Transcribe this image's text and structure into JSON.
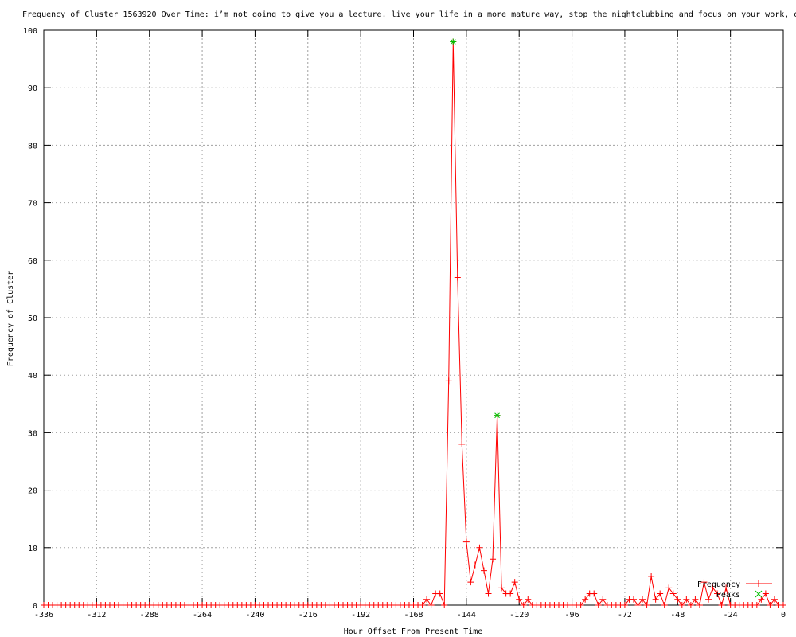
{
  "chart_data": {
    "type": "line",
    "title": "Frequency of Cluster 1563920 Over Time: i’m not going to give you a lecture. live your life in a more mature way, stop the nightclubbing and focus on your work, o",
    "xlabel": "Hour Offset From Present Time",
    "ylabel": "Frequency of Cluster",
    "xlim": [
      -336,
      0
    ],
    "ylim": [
      0,
      100
    ],
    "xticks": [
      -336,
      -312,
      -288,
      -264,
      -240,
      -216,
      -192,
      -168,
      -144,
      -120,
      -96,
      -72,
      -48,
      -24,
      0
    ],
    "yticks": [
      0,
      10,
      20,
      30,
      40,
      50,
      60,
      70,
      80,
      90,
      100
    ],
    "grid": true,
    "legend_position": "bottom-right",
    "series": [
      {
        "name": "Frequency",
        "color": "#ff0000",
        "marker": "plus",
        "x": [
          -336,
          -334,
          -332,
          -330,
          -328,
          -326,
          -324,
          -322,
          -320,
          -318,
          -316,
          -314,
          -312,
          -310,
          -308,
          -306,
          -304,
          -302,
          -300,
          -298,
          -296,
          -294,
          -292,
          -290,
          -288,
          -286,
          -284,
          -282,
          -280,
          -278,
          -276,
          -274,
          -272,
          -270,
          -268,
          -266,
          -264,
          -262,
          -260,
          -258,
          -256,
          -254,
          -252,
          -250,
          -248,
          -246,
          -244,
          -242,
          -240,
          -238,
          -236,
          -234,
          -232,
          -230,
          -228,
          -226,
          -224,
          -222,
          -220,
          -218,
          -216,
          -214,
          -212,
          -210,
          -208,
          -206,
          -204,
          -202,
          -200,
          -198,
          -196,
          -194,
          -192,
          -190,
          -188,
          -186,
          -184,
          -182,
          -180,
          -178,
          -176,
          -174,
          -172,
          -170,
          -168,
          -166,
          -164,
          -162,
          -160,
          -158,
          -156,
          -154,
          -152,
          -150,
          -148,
          -146,
          -144,
          -142,
          -140,
          -138,
          -136,
          -134,
          -132,
          -130,
          -128,
          -126,
          -124,
          -122,
          -120,
          -118,
          -116,
          -114,
          -112,
          -110,
          -108,
          -106,
          -104,
          -102,
          -100,
          -98,
          -96,
          -94,
          -92,
          -90,
          -88,
          -86,
          -84,
          -82,
          -80,
          -78,
          -76,
          -74,
          -72,
          -70,
          -68,
          -66,
          -64,
          -62,
          -60,
          -58,
          -56,
          -54,
          -52,
          -50,
          -48,
          -46,
          -44,
          -42,
          -40,
          -38,
          -36,
          -34,
          -32,
          -30,
          -28,
          -26,
          -24,
          -22,
          -20,
          -18,
          -16,
          -14,
          -12,
          -10,
          -8,
          -6,
          -4,
          -2,
          0
        ],
        "y": [
          0,
          0,
          0,
          0,
          0,
          0,
          0,
          0,
          0,
          0,
          0,
          0,
          0,
          0,
          0,
          0,
          0,
          0,
          0,
          0,
          0,
          0,
          0,
          0,
          0,
          0,
          0,
          0,
          0,
          0,
          0,
          0,
          0,
          0,
          0,
          0,
          0,
          0,
          0,
          0,
          0,
          0,
          0,
          0,
          0,
          0,
          0,
          0,
          0,
          0,
          0,
          0,
          0,
          0,
          0,
          0,
          0,
          0,
          0,
          0,
          0,
          0,
          0,
          0,
          0,
          0,
          0,
          0,
          0,
          0,
          0,
          0,
          0,
          0,
          0,
          0,
          0,
          0,
          0,
          0,
          0,
          0,
          0,
          0,
          0,
          0,
          0,
          1,
          0,
          2,
          2,
          0,
          39,
          98,
          57,
          28,
          11,
          4,
          7,
          10,
          6,
          2,
          8,
          33,
          3,
          2,
          2,
          4,
          1,
          0,
          1,
          0,
          0,
          0,
          0,
          0,
          0,
          0,
          0,
          0,
          0,
          0,
          0,
          1,
          2,
          2,
          0,
          1,
          0,
          0,
          0,
          0,
          0,
          1,
          1,
          0,
          1,
          0,
          5,
          1,
          2,
          0,
          3,
          2,
          1,
          0,
          1,
          0,
          1,
          0,
          4,
          1,
          3,
          2,
          0,
          3,
          0,
          0,
          0,
          0,
          0,
          0,
          0,
          1,
          2,
          0,
          1,
          0,
          0
        ]
      },
      {
        "name": "Peaks",
        "color": "#00c000",
        "marker": "cross",
        "x": [
          -150,
          -130
        ],
        "y": [
          98,
          33
        ]
      }
    ]
  }
}
